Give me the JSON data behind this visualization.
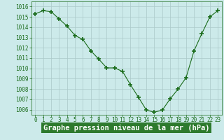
{
  "x": [
    0,
    1,
    2,
    3,
    4,
    5,
    6,
    7,
    8,
    9,
    10,
    11,
    12,
    13,
    14,
    15,
    16,
    17,
    18,
    19,
    20,
    21,
    22,
    23
  ],
  "y": [
    1015.3,
    1015.6,
    1015.5,
    1014.8,
    1014.1,
    1013.2,
    1012.8,
    1011.7,
    1010.9,
    1010.05,
    1010.05,
    1009.7,
    1008.4,
    1007.2,
    1005.95,
    1005.75,
    1005.95,
    1007.05,
    1008.0,
    1009.1,
    1011.7,
    1013.4,
    1015.0,
    1015.6
  ],
  "line_color": "#1a6b1a",
  "marker_color": "#1a6b1a",
  "bg_color": "#cceaea",
  "grid_color": "#aac8c8",
  "ylabel_ticks": [
    1006,
    1007,
    1008,
    1009,
    1010,
    1011,
    1012,
    1013,
    1014,
    1015,
    1016
  ],
  "xlabel_label": "Graphe pression niveau de la mer (hPa)",
  "xlabel_bg": "#2d7a2d",
  "ylim": [
    1005.5,
    1016.5
  ],
  "xlim": [
    -0.5,
    23.5
  ],
  "tick_fontsize": 5.5,
  "label_fontsize": 7.5
}
